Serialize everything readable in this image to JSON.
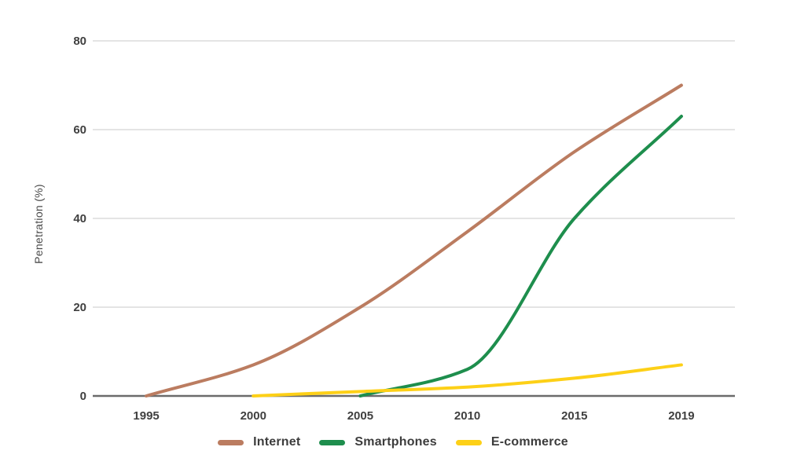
{
  "chart_data": {
    "type": "line",
    "title": "",
    "xlabel": "",
    "ylabel": "Penetration (%)",
    "categories": [
      "1995",
      "2000",
      "2005",
      "2010",
      "2015",
      "2019"
    ],
    "y_ticks": [
      0,
      20,
      40,
      60,
      80
    ],
    "ylim": [
      0,
      80
    ],
    "grid": true,
    "smooth": true,
    "legend_position": "bottom",
    "series": [
      {
        "name": "Internet",
        "color": "#bb7c60",
        "values": [
          0,
          7,
          20,
          37,
          55,
          70
        ]
      },
      {
        "name": "Smartphones",
        "color": "#1e8e4d",
        "values": [
          null,
          null,
          0,
          6,
          40,
          63
        ]
      },
      {
        "name": "E-commerce",
        "color": "#fdd017",
        "values": [
          null,
          0,
          1,
          2,
          4,
          7
        ]
      }
    ],
    "axis_color": "#6b6b6b",
    "grid_color": "#e4e4e4",
    "tick_color": "#404040"
  }
}
